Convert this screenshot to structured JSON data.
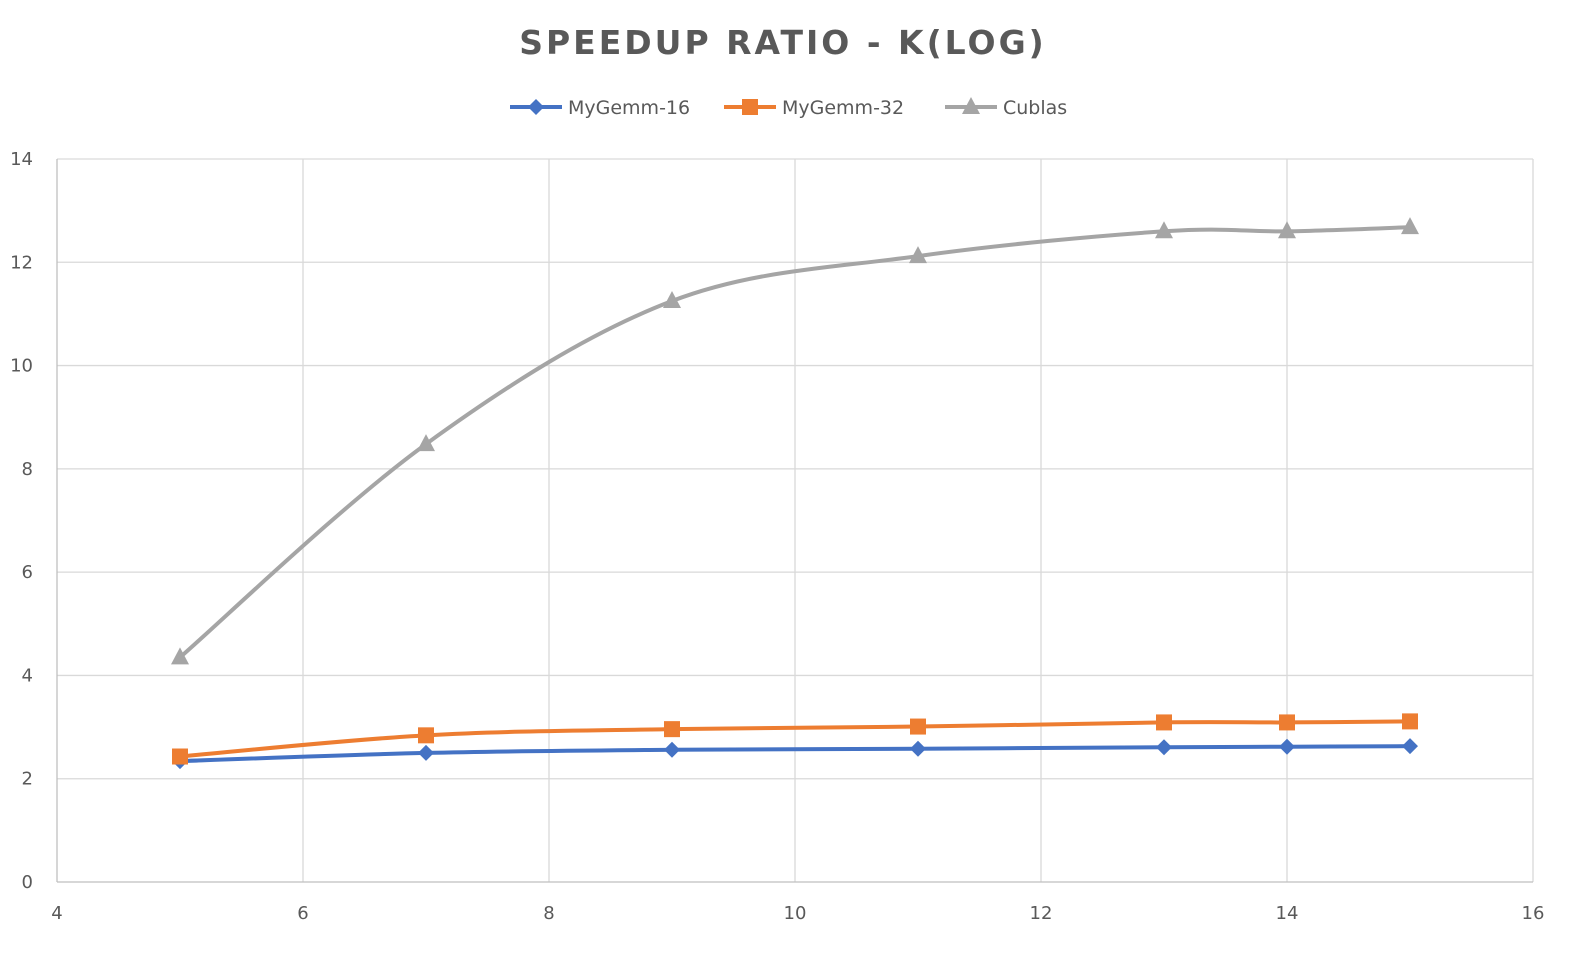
{
  "chart_data": {
    "type": "line",
    "title": "SPEEDUP RATIO - K(LOG)",
    "xlabel": "",
    "ylabel": "",
    "xlim": [
      4,
      16
    ],
    "ylim": [
      0,
      14
    ],
    "x_ticks": [
      4,
      6,
      8,
      10,
      12,
      14,
      16
    ],
    "y_ticks": [
      0,
      2,
      4,
      6,
      8,
      10,
      12,
      14
    ],
    "grid": true,
    "legend_position": "top",
    "smooth": true,
    "series": [
      {
        "name": "MyGemm-16",
        "color": "#4472c4",
        "marker": "diamond",
        "points": [
          {
            "x": 5,
            "y": 2.34
          },
          {
            "x": 7,
            "y": 2.5
          },
          {
            "x": 9,
            "y": 2.56
          },
          {
            "x": 11,
            "y": 2.58
          },
          {
            "x": 13,
            "y": 2.61
          },
          {
            "x": 14,
            "y": 2.62
          },
          {
            "x": 15,
            "y": 2.63
          }
        ]
      },
      {
        "name": "MyGemm-32",
        "color": "#ed7d31",
        "marker": "square",
        "points": [
          {
            "x": 5,
            "y": 2.43
          },
          {
            "x": 7,
            "y": 2.84
          },
          {
            "x": 9,
            "y": 2.96
          },
          {
            "x": 11,
            "y": 3.01
          },
          {
            "x": 13,
            "y": 3.09
          },
          {
            "x": 14,
            "y": 3.09
          },
          {
            "x": 15,
            "y": 3.11
          }
        ]
      },
      {
        "name": "Cublas",
        "color": "#a5a5a5",
        "marker": "triangle",
        "points": [
          {
            "x": 5,
            "y": 4.35
          },
          {
            "x": 7,
            "y": 8.48
          },
          {
            "x": 9,
            "y": 11.25
          },
          {
            "x": 11,
            "y": 12.12
          },
          {
            "x": 13,
            "y": 12.6
          },
          {
            "x": 14,
            "y": 12.6
          },
          {
            "x": 15,
            "y": 12.68
          }
        ]
      }
    ]
  }
}
